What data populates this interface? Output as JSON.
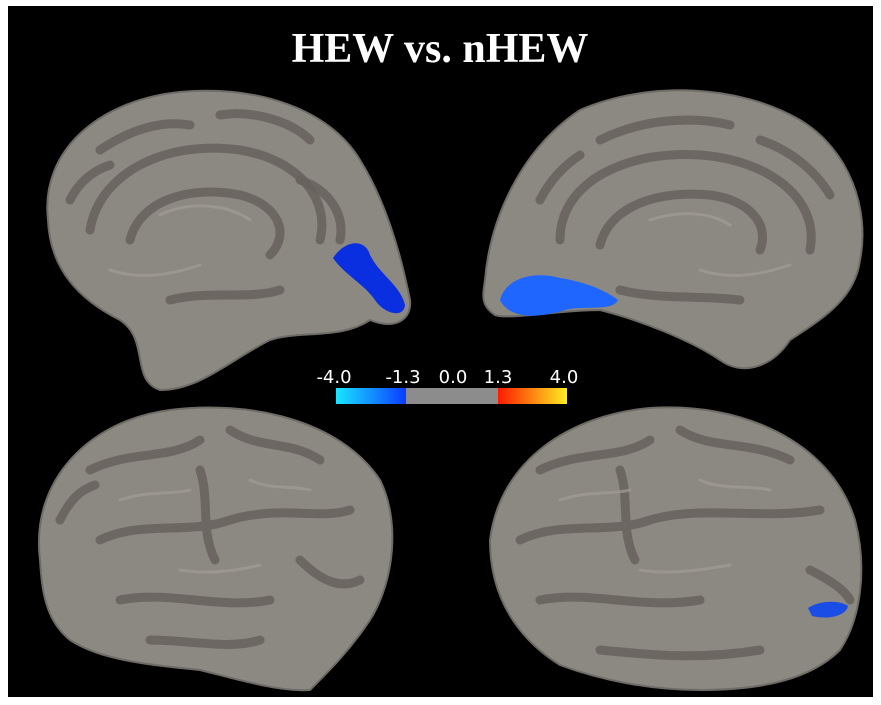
{
  "header": {
    "title": "HEW vs. nHEW"
  },
  "colorbar": {
    "labels": [
      "-4.0",
      "-1.3",
      "0.0",
      "1.3",
      "4.0"
    ]
  }
}
